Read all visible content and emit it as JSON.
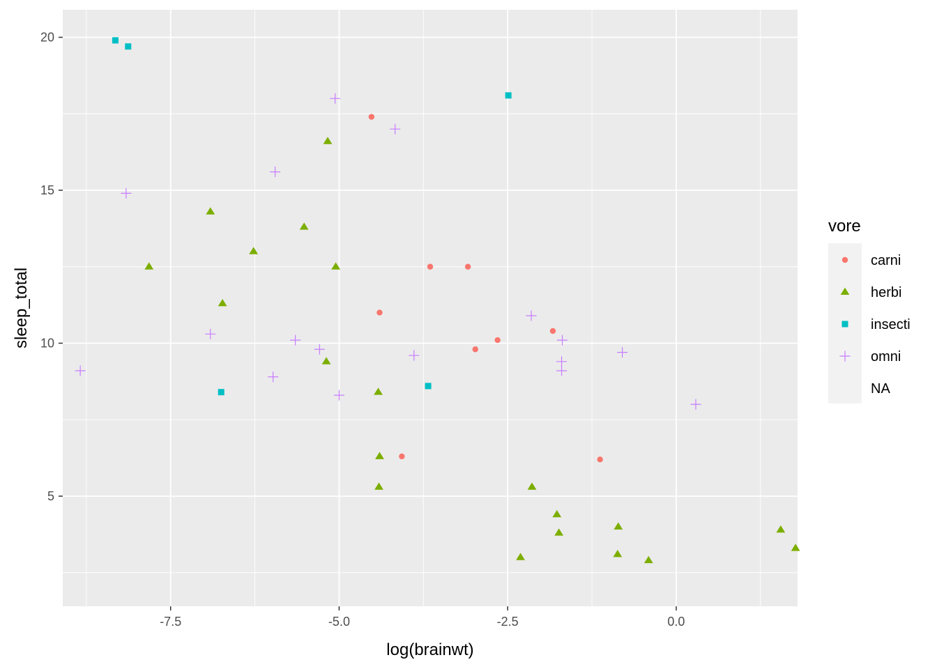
{
  "chart_data": {
    "type": "scatter",
    "xlabel": "log(brainwt)",
    "ylabel": "sleep_total",
    "xlim": [
      -9.1,
      1.8
    ],
    "ylim": [
      1.4,
      20.9
    ],
    "x_ticks": [
      -7.5,
      -5.0,
      -2.5,
      0.0
    ],
    "x_tick_labels": [
      "-7.5",
      "-5.0",
      "-2.5",
      "0.0"
    ],
    "y_ticks": [
      5,
      10,
      15,
      20
    ],
    "y_tick_labels": [
      "5",
      "10",
      "15",
      "20"
    ],
    "grid": true,
    "legend": {
      "title": "vore",
      "placement": "right",
      "entries": [
        "carni",
        "herbi",
        "insecti",
        "omni",
        "NA"
      ]
    },
    "series": [
      {
        "name": "carni",
        "shape": "circle",
        "color": "#F8766D",
        "points": [
          [
            -4.52,
            17.4
          ],
          [
            -3.65,
            12.5
          ],
          [
            -3.09,
            12.5
          ],
          [
            -4.4,
            11.0
          ],
          [
            -1.83,
            10.4
          ],
          [
            -2.65,
            10.1
          ],
          [
            -2.98,
            9.8
          ],
          [
            -4.07,
            6.3
          ],
          [
            -1.13,
            6.2
          ]
        ]
      },
      {
        "name": "herbi",
        "shape": "triangle",
        "color": "#7CAE00",
        "points": [
          [
            -5.17,
            16.6
          ],
          [
            -6.91,
            14.3
          ],
          [
            -5.52,
            13.8
          ],
          [
            -6.27,
            13.0
          ],
          [
            -7.82,
            12.5
          ],
          [
            -5.05,
            12.5
          ],
          [
            -6.73,
            11.3
          ],
          [
            -5.19,
            9.4
          ],
          [
            -4.42,
            8.4
          ],
          [
            -4.4,
            6.3
          ],
          [
            -4.41,
            5.3
          ],
          [
            -2.14,
            5.3
          ],
          [
            -1.77,
            4.4
          ],
          [
            -0.86,
            4.0
          ],
          [
            -1.74,
            3.8
          ],
          [
            1.55,
            3.9
          ],
          [
            -0.87,
            3.1
          ],
          [
            1.77,
            3.3
          ],
          [
            -2.31,
            3.0
          ],
          [
            -0.41,
            2.9
          ]
        ]
      },
      {
        "name": "insecti",
        "shape": "square",
        "color": "#00BFC4",
        "points": [
          [
            -8.32,
            19.9
          ],
          [
            -8.13,
            19.7
          ],
          [
            -2.49,
            18.1
          ],
          [
            -6.75,
            8.4
          ],
          [
            -3.68,
            8.6
          ]
        ]
      },
      {
        "name": "omni",
        "shape": "plus",
        "color": "#C77CFF",
        "points": [
          [
            -5.06,
            18.0
          ],
          [
            -4.17,
            17.0
          ],
          [
            -5.95,
            15.6
          ],
          [
            -8.16,
            14.9
          ],
          [
            -2.15,
            10.9
          ],
          [
            -6.91,
            10.3
          ],
          [
            -5.65,
            10.1
          ],
          [
            -1.69,
            10.1
          ],
          [
            -5.29,
            9.8
          ],
          [
            -0.8,
            9.7
          ],
          [
            -3.89,
            9.6
          ],
          [
            -1.7,
            9.4
          ],
          [
            -8.84,
            9.1
          ],
          [
            -1.7,
            9.1
          ],
          [
            -5.98,
            8.9
          ],
          [
            -5.0,
            8.3
          ],
          [
            0.29,
            8.0
          ]
        ]
      }
    ]
  }
}
